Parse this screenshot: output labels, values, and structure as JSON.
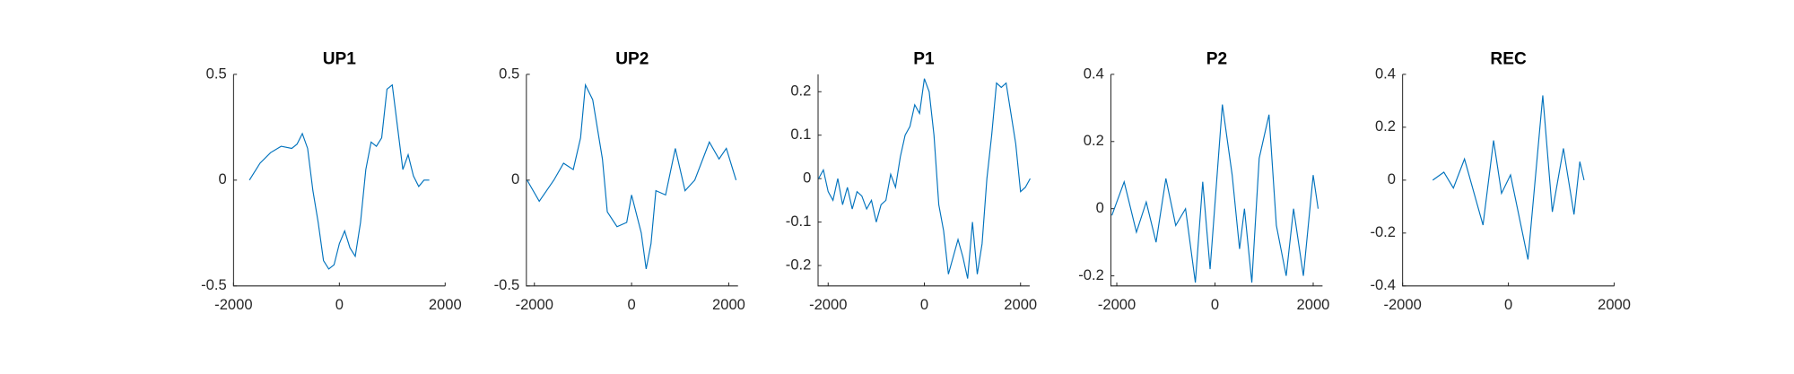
{
  "chart_data": [
    {
      "type": "line",
      "title": "UP1",
      "color": "#0072bd",
      "x": [
        -1700,
        -1500,
        -1300,
        -1100,
        -900,
        -800,
        -700,
        -600,
        -500,
        -400,
        -300,
        -200,
        -100,
        0,
        100,
        200,
        300,
        400,
        500,
        600,
        700,
        800,
        900,
        1000,
        1100,
        1200,
        1300,
        1400,
        1500,
        1600,
        1700
      ],
      "values": [
        0,
        0.08,
        0.13,
        0.16,
        0.15,
        0.17,
        0.22,
        0.15,
        -0.05,
        -0.2,
        -0.38,
        -0.42,
        -0.4,
        -0.3,
        -0.24,
        -0.32,
        -0.36,
        -0.2,
        0.05,
        0.18,
        0.16,
        0.2,
        0.43,
        0.45,
        0.25,
        0.05,
        0.12,
        0.02,
        -0.03,
        0,
        0
      ],
      "xlim": [
        -2000,
        2000
      ],
      "xticks": [
        -2000,
        0,
        2000
      ],
      "ylim": [
        -0.5,
        0.5
      ],
      "yticks": [
        -0.5,
        0,
        0.5
      ]
    },
    {
      "type": "line",
      "title": "UP2",
      "color": "#0072bd",
      "x": [
        -2150,
        -1900,
        -1600,
        -1400,
        -1200,
        -1050,
        -950,
        -800,
        -600,
        -500,
        -300,
        -100,
        0,
        200,
        300,
        400,
        500,
        700,
        900,
        1100,
        1300,
        1600,
        1800,
        1950,
        2150
      ],
      "values": [
        0,
        -0.1,
        0,
        0.08,
        0.05,
        0.2,
        0.45,
        0.38,
        0.1,
        -0.15,
        -0.22,
        -0.2,
        -0.07,
        -0.25,
        -0.42,
        -0.3,
        -0.05,
        -0.07,
        0.15,
        -0.05,
        0,
        0.18,
        0.1,
        0.15,
        0
      ],
      "xlim": [
        -2165,
        2190
      ],
      "xticks": [
        -2000,
        0,
        2000
      ],
      "ylim": [
        -0.5,
        0.5
      ],
      "yticks": [
        -0.5,
        0,
        0.5
      ]
    },
    {
      "type": "line",
      "title": "P1",
      "color": "#0072bd",
      "x": [
        -2200,
        -2100,
        -2000,
        -1900,
        -1800,
        -1700,
        -1600,
        -1500,
        -1400,
        -1300,
        -1200,
        -1100,
        -1000,
        -900,
        -800,
        -700,
        -600,
        -500,
        -400,
        -300,
        -200,
        -100,
        0,
        100,
        200,
        300,
        400,
        500,
        600,
        700,
        800,
        900,
        1000,
        1100,
        1200,
        1300,
        1400,
        1500,
        1600,
        1700,
        1800,
        1900,
        2000,
        2100,
        2200
      ],
      "values": [
        0,
        0.02,
        -0.03,
        -0.05,
        0,
        -0.06,
        -0.02,
        -0.07,
        -0.03,
        -0.04,
        -0.07,
        -0.05,
        -0.1,
        -0.06,
        -0.05,
        0.01,
        -0.02,
        0.05,
        0.1,
        0.12,
        0.17,
        0.15,
        0.23,
        0.2,
        0.1,
        -0.06,
        -0.12,
        -0.22,
        -0.18,
        -0.14,
        -0.18,
        -0.23,
        -0.1,
        -0.22,
        -0.15,
        0,
        0.1,
        0.22,
        0.21,
        0.22,
        0.15,
        0.08,
        -0.03,
        -0.02,
        0
      ],
      "xlim": [
        -2210,
        2190
      ],
      "xticks": [
        -2000,
        0,
        2000
      ],
      "ylim": [
        -0.247,
        0.24
      ],
      "yticks": [
        -0.2,
        -0.1,
        0,
        0.1,
        0.2
      ]
    },
    {
      "type": "line",
      "title": "P2",
      "color": "#0072bd",
      "x": [
        -2100,
        -1850,
        -1600,
        -1400,
        -1200,
        -1000,
        -800,
        -600,
        -400,
        -250,
        -100,
        150,
        350,
        500,
        600,
        750,
        900,
        1100,
        1250,
        1450,
        1600,
        1800,
        2000,
        2100
      ],
      "values": [
        -0.02,
        0.08,
        -0.07,
        0.02,
        -0.1,
        0.09,
        -0.05,
        0,
        -0.22,
        0.08,
        -0.18,
        0.31,
        0.1,
        -0.12,
        0,
        -0.22,
        0.15,
        0.28,
        -0.05,
        -0.2,
        0,
        -0.2,
        0.1,
        0
      ],
      "xlim": [
        -2120,
        2190
      ],
      "xticks": [
        -2000,
        0,
        2000
      ],
      "ylim": [
        -0.23,
        0.4
      ],
      "yticks": [
        -0.2,
        0,
        0.2,
        0.4
      ]
    },
    {
      "type": "line",
      "title": "REC",
      "color": "#0072bd",
      "x": [
        -1430,
        -1220,
        -1040,
        -830,
        -480,
        -280,
        -130,
        40,
        370,
        650,
        830,
        1040,
        1240,
        1350,
        1430
      ],
      "values": [
        0,
        0.03,
        -0.03,
        0.08,
        -0.17,
        0.15,
        -0.05,
        0.02,
        -0.3,
        0.32,
        -0.12,
        0.12,
        -0.13,
        0.07,
        0
      ],
      "xlim": [
        -2000,
        2000
      ],
      "xticks": [
        -2000,
        0,
        2000
      ],
      "ylim": [
        -0.4,
        0.4
      ],
      "yticks": [
        -0.4,
        -0.2,
        0,
        0.2,
        0.4
      ]
    }
  ]
}
